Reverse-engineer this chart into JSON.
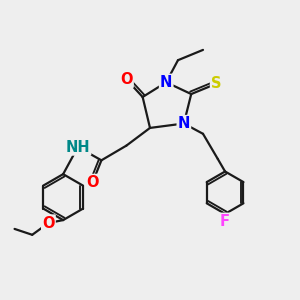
{
  "bg_color": "#eeeeee",
  "bond_color": "#1a1a1a",
  "bond_width": 1.6,
  "atom_colors": {
    "N": "#0000ff",
    "O": "#ff0000",
    "S": "#cccc00",
    "F": "#ff44ff",
    "H": "#008888",
    "C": "#1a1a1a"
  },
  "font_size_atom": 10.5,
  "figsize": [
    3.0,
    3.0
  ],
  "dpi": 100
}
